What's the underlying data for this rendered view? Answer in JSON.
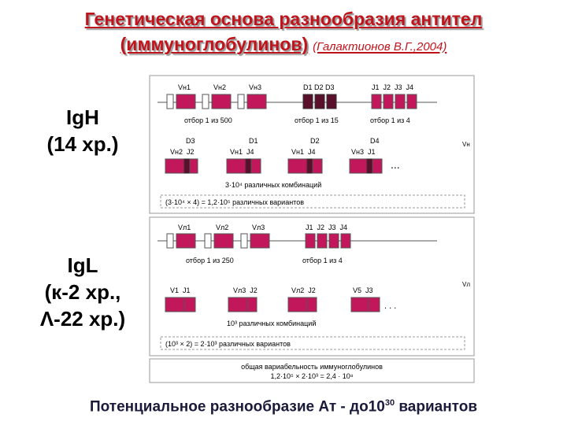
{
  "title": {
    "line1": "Генетическая основа разнообразия антител",
    "line2": "(иммуноглобулинов)",
    "reference": "(Галактионов В.Г.,2004)"
  },
  "heavy": {
    "label": "IgH",
    "chromosome": "(14 хр.)",
    "genes_top": {
      "v1": "Vн1",
      "v2": "Vн2",
      "v3": "Vн3",
      "d": "D1 D2 D3",
      "j": "J1  J2  J3  J4"
    },
    "select_v": "отбор 1 из 500",
    "select_d": "отбор 1 из 15",
    "select_j": "отбор 1 из 4",
    "combos_top": {
      "c1": "D3",
      "c2": "D1",
      "c3": "D2",
      "c4": "D4"
    },
    "combos": [
      "Vн2  J2",
      "Vн1  J4",
      "Vн1  J4",
      "Vн3  J1"
    ],
    "ellipsis": "...",
    "side_label": "Vн",
    "combinations": "3·10⁴ различных комбинаций",
    "variants": "(3·10⁴ × 4) = 1,2·10⁵ различных вариантов"
  },
  "light": {
    "label": "IgL",
    "chromosome": "(к-2 хр.,",
    "chromosome2": "Λ-22 хр.)",
    "genes_top": {
      "v1": "Vл1",
      "v2": "Vл2",
      "v3": "Vл3",
      "j": "J1  J2  J3  J4"
    },
    "select_v": "отбор 1 из 250",
    "select_j": "отбор 1 из 4",
    "combos": [
      "V1  J1",
      "Vл3  J2",
      "Vл2  J2",
      "V5  J3"
    ],
    "ellipsis": ". . .",
    "side_label": "Vл",
    "combinations": "10³ различных комбинаций",
    "variants": "(10³ × 2) = 2·10³ различных вариантов"
  },
  "total": {
    "line1": "общая вариабельность иммуноглобулинов",
    "line2": "1,2·10⁵ × 2·10³ = 2,4 · 10⁸"
  },
  "bottom": {
    "text": "Потенциальное разнообразие Ат - до10",
    "exponent": "30",
    "suffix": " вариантов"
  },
  "colors": {
    "title": "#c0141c",
    "segment": "#c2185b",
    "dark_segment": "#5a0f2a",
    "box_border": "#9a9a9a"
  }
}
